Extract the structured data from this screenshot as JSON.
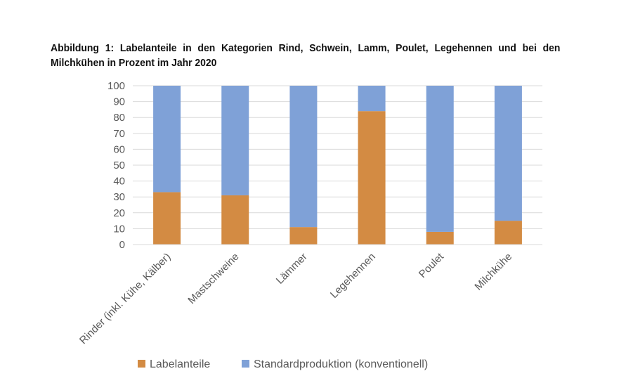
{
  "caption": "Abbildung 1: Labelanteile in den Kategorien Rind, Schwein, Lamm, Poulet, Legehennen und bei den Milchkühen in Prozent im Jahr 2020",
  "chart_data": {
    "type": "bar",
    "stacked": true,
    "categories": [
      "Rinder (inkl. Kühe, Kälber)",
      "Mastschweine",
      "Lämmer",
      "Legehennen",
      "Poulet",
      "Milchkühe"
    ],
    "series": [
      {
        "name": "Labelanteile",
        "color": "#D38B43",
        "values": [
          33,
          31,
          11,
          84,
          8,
          15
        ]
      },
      {
        "name": "Standardproduktion (konventionell)",
        "color": "#7FA1D7",
        "values": [
          67,
          69,
          89,
          16,
          92,
          85
        ]
      }
    ],
    "ylim": [
      0,
      100
    ],
    "yticks": [
      0,
      10,
      20,
      30,
      40,
      50,
      60,
      70,
      80,
      90,
      100
    ],
    "grid": true,
    "legend_position": "bottom"
  }
}
